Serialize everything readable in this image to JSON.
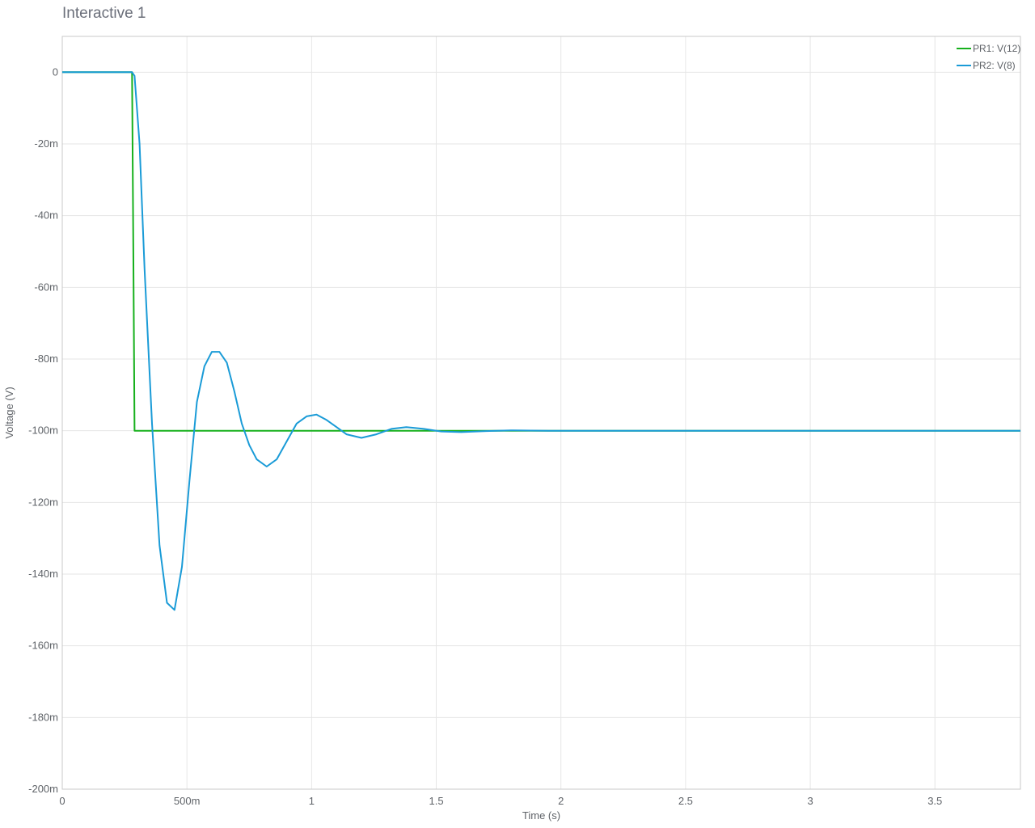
{
  "window": {
    "title": "Interactive 1"
  },
  "chart_data": {
    "type": "line",
    "title": "",
    "xlabel": "Time (s)",
    "ylabel": "Voltage (V)",
    "xlim": [
      0,
      3.843
    ],
    "ylim": [
      -0.2,
      0.01
    ],
    "grid": true,
    "legend_position": "top-right",
    "x_ticks": [
      {
        "value": 0,
        "label": "0"
      },
      {
        "value": 0.5,
        "label": "500m"
      },
      {
        "value": 1,
        "label": "1"
      },
      {
        "value": 1.5,
        "label": "1.5"
      },
      {
        "value": 2,
        "label": "2"
      },
      {
        "value": 2.5,
        "label": "2.5"
      },
      {
        "value": 3,
        "label": "3"
      },
      {
        "value": 3.5,
        "label": "3.5"
      }
    ],
    "y_ticks": [
      {
        "value": 0,
        "label": "0"
      },
      {
        "value": -0.02,
        "label": "-20m"
      },
      {
        "value": -0.04,
        "label": "-40m"
      },
      {
        "value": -0.06,
        "label": "-60m"
      },
      {
        "value": -0.08,
        "label": "-80m"
      },
      {
        "value": -0.1,
        "label": "-100m"
      },
      {
        "value": -0.12,
        "label": "-120m"
      },
      {
        "value": -0.14,
        "label": "-140m"
      },
      {
        "value": -0.16,
        "label": "-160m"
      },
      {
        "value": -0.18,
        "label": "-180m"
      },
      {
        "value": -0.2,
        "label": "-200m"
      }
    ],
    "series": [
      {
        "name": "PR1: V(12)",
        "color": "#16b01c",
        "x": [
          0,
          0.28,
          0.285,
          0.29,
          3.843
        ],
        "y": [
          0,
          0,
          -0.05,
          -0.1,
          -0.1
        ]
      },
      {
        "name": "PR2: V(8)",
        "color": "#1a9bd7",
        "x": [
          0,
          0.28,
          0.29,
          0.31,
          0.33,
          0.36,
          0.39,
          0.42,
          0.45,
          0.48,
          0.51,
          0.54,
          0.57,
          0.6,
          0.63,
          0.66,
          0.69,
          0.72,
          0.75,
          0.78,
          0.82,
          0.86,
          0.9,
          0.94,
          0.98,
          1.02,
          1.06,
          1.1,
          1.14,
          1.2,
          1.26,
          1.32,
          1.38,
          1.45,
          1.52,
          1.6,
          1.7,
          1.8,
          1.95,
          2.1,
          2.3,
          3.843
        ],
        "y": [
          0,
          0,
          -0.001,
          -0.02,
          -0.055,
          -0.098,
          -0.132,
          -0.148,
          -0.15,
          -0.138,
          -0.114,
          -0.092,
          -0.082,
          -0.078,
          -0.078,
          -0.081,
          -0.089,
          -0.098,
          -0.104,
          -0.108,
          -0.11,
          -0.108,
          -0.103,
          -0.098,
          -0.096,
          -0.0955,
          -0.097,
          -0.099,
          -0.101,
          -0.102,
          -0.101,
          -0.0995,
          -0.099,
          -0.0995,
          -0.1002,
          -0.1004,
          -0.1001,
          -0.0999,
          -0.1,
          -0.1,
          -0.1,
          -0.1
        ]
      }
    ]
  }
}
